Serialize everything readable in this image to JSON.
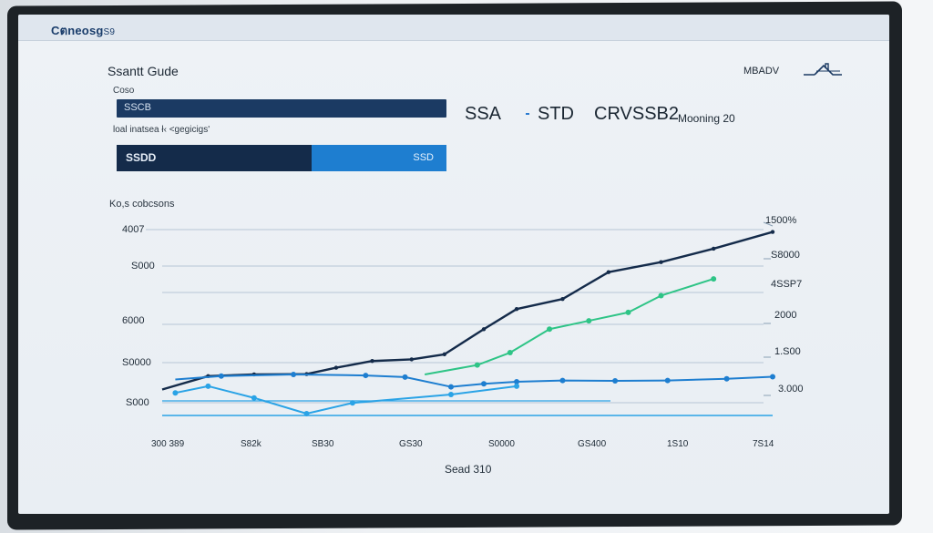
{
  "header": {
    "brand": "Cตneosg",
    "brand_small": "S9"
  },
  "panel": {
    "title": "Ssantt Gude",
    "subhead": "Coso",
    "bar1_label": "SSCB",
    "desc": "loal inatsea ł‹ <gegicigs'",
    "bar2_left": "SSDD",
    "bar2_right": "SSD",
    "counts_label": "Ko,s cobcsons"
  },
  "legend": {
    "items": [
      "SSA",
      "STD",
      "CRVSSB2",
      "Mooning 20"
    ],
    "corner": "MBADV"
  },
  "colors": {
    "navy": "#142b4a",
    "blue": "#1e7ed0",
    "teal": "#2ec486",
    "light_blue": "#2aa3e6"
  },
  "chart_data": {
    "type": "line",
    "x_ticks": [
      "300 389",
      "S82k",
      "SB30",
      "GS30",
      "S0000",
      "GS400",
      "1S10",
      "7S14"
    ],
    "xlabel": "Sead 310",
    "y_ticks_left": [
      "4007",
      "S000",
      "6000",
      "S0000",
      "S000"
    ],
    "y_ticks_right": [
      "1500%",
      "S8000",
      "4SSP7",
      "2000",
      "1.S00",
      "3.000"
    ],
    "ylim": [
      0,
      100
    ],
    "series": [
      {
        "values": [
          [
            0,
            11
          ],
          [
            0.7,
            15
          ],
          [
            1.4,
            15.5
          ],
          [
            2.2,
            15.6
          ],
          [
            2.65,
            17.5
          ],
          [
            3.2,
            19.5
          ],
          [
            3.8,
            20
          ],
          [
            4.3,
            21.5
          ],
          [
            4.9,
            29
          ],
          [
            5.4,
            35
          ],
          [
            6.1,
            38
          ],
          [
            6.8,
            46
          ],
          [
            7.6,
            49
          ],
          [
            8.4,
            53
          ],
          [
            9.3,
            58
          ]
        ]
      },
      {
        "values": [
          [
            4.0,
            15.5
          ],
          [
            4.8,
            18.3
          ],
          [
            5.3,
            22
          ],
          [
            5.9,
            29
          ],
          [
            6.5,
            31.5
          ],
          [
            7.1,
            34
          ],
          [
            7.6,
            39
          ],
          [
            8.4,
            44
          ]
        ]
      },
      {
        "values": [
          [
            0.2,
            14
          ],
          [
            0.9,
            15
          ],
          [
            2.0,
            15.5
          ],
          [
            3.1,
            15.2
          ],
          [
            3.7,
            14.7
          ],
          [
            4.4,
            11.8
          ],
          [
            4.9,
            12.7
          ],
          [
            5.4,
            13.3
          ],
          [
            6.1,
            13.7
          ],
          [
            6.9,
            13.6
          ],
          [
            7.7,
            13.7
          ],
          [
            8.6,
            14.2
          ],
          [
            9.3,
            14.8
          ]
        ]
      },
      {
        "values": [
          [
            0.2,
            10
          ],
          [
            0.7,
            12
          ],
          [
            1.4,
            8.5
          ],
          [
            2.2,
            3.8
          ],
          [
            2.9,
            7
          ],
          [
            4.4,
            9.5
          ],
          [
            5.4,
            12
          ]
        ]
      }
    ]
  }
}
